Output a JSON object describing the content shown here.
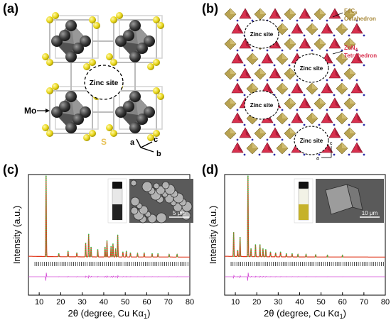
{
  "panels": {
    "a": {
      "label": "(a)",
      "zinc_site": "Zinc site",
      "mo_label": "Mo",
      "s_label": "S",
      "axes": [
        "a",
        "b",
        "c"
      ]
    },
    "b": {
      "label": "(b)",
      "legend_fe": "FeC",
      "legend_fe_sub": "6",
      "legend_fe_line2": "Octahedron",
      "legend_zn": "ZnN",
      "legend_zn_sub": "4",
      "legend_zn_line2": "Tetrahedron",
      "zinc_sites": [
        "Zinc site",
        "Zinc site",
        "Zinc site",
        "Zinc site",
        "Zinc site",
        "Zinc site"
      ],
      "axes": [
        "a",
        "c"
      ]
    },
    "c": {
      "label": "(c)",
      "scale_bar": "5 μm"
    },
    "d": {
      "label": "(d)",
      "scale_bar": "10 μm"
    }
  },
  "colors": {
    "mo_sphere": "#3a3a3a",
    "s_sphere": "#e8d619",
    "fe_oct": "#b9a352",
    "zn_tet": "#d8304e",
    "pattern_red": "#e0361a",
    "pattern_green": "#37c34a",
    "tick_black": "#000000",
    "diff_magenta": "#d44ad6",
    "vial_light": "#c6b22a"
  },
  "chart_data": [
    {
      "type": "line",
      "panel": "(c)",
      "xlabel": "2θ (degree, Cu Kα",
      "xlabel_sub": "1",
      "xlabel_end": ")",
      "ylabel": "Intensity (a.u.)",
      "xlim": [
        5,
        80
      ],
      "xticks": [
        10,
        20,
        30,
        40,
        50,
        60,
        70,
        80
      ],
      "peaks": [
        {
          "x": 13.2,
          "h": 1.0
        },
        {
          "x": 19.1,
          "h": 0.04
        },
        {
          "x": 23.4,
          "h": 0.07
        },
        {
          "x": 27.5,
          "h": 0.05
        },
        {
          "x": 31.6,
          "h": 0.17
        },
        {
          "x": 33.0,
          "h": 0.28
        },
        {
          "x": 34.1,
          "h": 0.12
        },
        {
          "x": 37.2,
          "h": 0.09
        },
        {
          "x": 40.6,
          "h": 0.12
        },
        {
          "x": 41.5,
          "h": 0.2
        },
        {
          "x": 43.4,
          "h": 0.13
        },
        {
          "x": 44.3,
          "h": 0.16
        },
        {
          "x": 45.5,
          "h": 0.1
        },
        {
          "x": 46.5,
          "h": 0.27
        },
        {
          "x": 48.9,
          "h": 0.06
        },
        {
          "x": 50.5,
          "h": 0.07
        },
        {
          "x": 52.4,
          "h": 0.05
        },
        {
          "x": 55.7,
          "h": 0.04
        },
        {
          "x": 58.8,
          "h": 0.05
        },
        {
          "x": 62.5,
          "h": 0.04
        },
        {
          "x": 65.2,
          "h": 0.04
        },
        {
          "x": 70.4,
          "h": 0.03
        },
        {
          "x": 74.1,
          "h": 0.03
        }
      ]
    },
    {
      "type": "line",
      "panel": "(d)",
      "xlabel": "2θ (degree, Cu Kα",
      "xlabel_sub": "1",
      "xlabel_end": ")",
      "ylabel": "Intensity (a.u.)",
      "xlim": [
        5,
        80
      ],
      "xticks": [
        10,
        20,
        30,
        40,
        50,
        60,
        70,
        80
      ],
      "peaks": [
        {
          "x": 9.2,
          "h": 0.3
        },
        {
          "x": 11.1,
          "h": 0.08
        },
        {
          "x": 12.2,
          "h": 0.24
        },
        {
          "x": 15.9,
          "h": 1.0
        },
        {
          "x": 17.3,
          "h": 0.1
        },
        {
          "x": 19.4,
          "h": 0.15
        },
        {
          "x": 21.5,
          "h": 0.15
        },
        {
          "x": 22.9,
          "h": 0.1
        },
        {
          "x": 24.2,
          "h": 0.09
        },
        {
          "x": 26.4,
          "h": 0.06
        },
        {
          "x": 28.8,
          "h": 0.05
        },
        {
          "x": 31.1,
          "h": 0.06
        },
        {
          "x": 33.8,
          "h": 0.04
        },
        {
          "x": 36.5,
          "h": 0.04
        },
        {
          "x": 39.2,
          "h": 0.03
        },
        {
          "x": 43.0,
          "h": 0.03
        },
        {
          "x": 47.5,
          "h": 0.025
        },
        {
          "x": 53.0,
          "h": 0.02
        },
        {
          "x": 60.0,
          "h": 0.02
        }
      ]
    }
  ]
}
